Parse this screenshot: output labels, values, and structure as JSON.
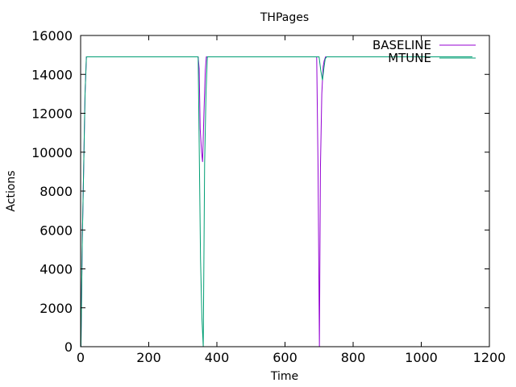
{
  "chart_data": {
    "type": "line",
    "title": "THPages",
    "xlabel": "Time",
    "ylabel": "Actions",
    "xlim": [
      0,
      1200
    ],
    "ylim": [
      0,
      16000
    ],
    "xticks": [
      0,
      200,
      400,
      600,
      800,
      1000,
      1200
    ],
    "yticks": [
      0,
      2000,
      4000,
      6000,
      8000,
      10000,
      12000,
      14000,
      16000
    ],
    "grid": false,
    "legend_position": "top-right",
    "series": [
      {
        "name": "BASELINE",
        "color": "#9400d3",
        "x": [
          1,
          5,
          9,
          13,
          17,
          21,
          345,
          348,
          351,
          355,
          358,
          362,
          366,
          369,
          373,
          693,
          697,
          701,
          704,
          708,
          712,
          715,
          719,
          723,
          726,
          1040
        ],
        "y": [
          0,
          5600,
          9200,
          13000,
          14900,
          14900,
          14900,
          14300,
          11200,
          10000,
          9500,
          12000,
          14200,
          14900,
          14900,
          14900,
          9200,
          0,
          9200,
          13000,
          14400,
          14700,
          14900,
          14900,
          14900,
          14900
        ]
      },
      {
        "name": "MTUNE",
        "color": "#009e73",
        "x": [
          1,
          5,
          9,
          13,
          17,
          21,
          345,
          348,
          352,
          356,
          360,
          364,
          368,
          372,
          376,
          695,
          700,
          705,
          710,
          714,
          718,
          722,
          1150
        ],
        "y": [
          0,
          5600,
          9200,
          13000,
          14900,
          14900,
          14900,
          10500,
          4500,
          1500,
          0,
          9400,
          13000,
          14900,
          14900,
          14900,
          14900,
          14200,
          13700,
          14300,
          14800,
          14900,
          14900
        ]
      }
    ]
  }
}
